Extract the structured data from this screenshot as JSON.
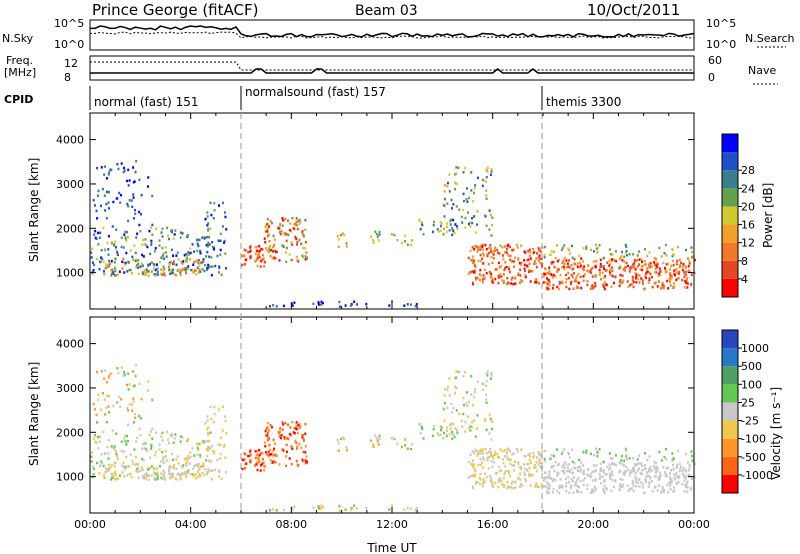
{
  "header": {
    "title": "Prince George (fitACF)",
    "beam": "Beam 03",
    "date": "10/Oct/2011"
  },
  "top_panel": {
    "left_label": "N.Sky",
    "left_ticks": [
      "10^5",
      "10^0"
    ],
    "right_ticks": [
      "10^5",
      "10^0"
    ],
    "right_label": "N.Search"
  },
  "freq_panel": {
    "left_label_1": "Freq.",
    "left_label_2": "[MHz]",
    "left_ticks": [
      "12",
      "8"
    ],
    "right_ticks": [
      "60",
      "0"
    ],
    "right_label": "Nave"
  },
  "cpid": {
    "label": "CPID",
    "modes": [
      {
        "name": "normal (fast) 151",
        "start_hour": 0
      },
      {
        "name": "normalsound (fast) 157",
        "start_hour": 6
      },
      {
        "name": "themis 3300",
        "start_hour": 18
      }
    ]
  },
  "chart_data": [
    {
      "type": "heatmap",
      "name": "power",
      "ylabel": "Slant Range [km]",
      "xlabel": "",
      "ylim": [
        180,
        4600
      ],
      "yticks": [
        "1000",
        "2000",
        "3000",
        "4000"
      ],
      "xlim_hours": [
        0,
        24
      ],
      "colorbar": {
        "label": "Power [dB]",
        "ticks": [
          "4",
          "8",
          "12",
          "16",
          "20",
          "24",
          "28"
        ],
        "colors": [
          "#0000ff",
          "#2050c8",
          "#3c7d8c",
          "#64a050",
          "#d2c832",
          "#f0a028",
          "#f07828",
          "#e64628",
          "#ff0000"
        ]
      }
    },
    {
      "type": "heatmap",
      "name": "velocity",
      "ylabel": "Slant Range [km]",
      "xlabel": "Time UT",
      "ylim": [
        180,
        4600
      ],
      "yticks": [
        "1000",
        "2000",
        "3000",
        "4000"
      ],
      "xticks": [
        "00:00",
        "04:00",
        "08:00",
        "12:00",
        "16:00",
        "20:00",
        "00:00"
      ],
      "xlim_hours": [
        0,
        24
      ],
      "colorbar": {
        "label": "Velocity [m s⁻¹]",
        "ticks": [
          "1000",
          "500",
          "100",
          "25",
          "-25",
          "-100",
          "-500",
          "-1000"
        ],
        "colors": [
          "#2846be",
          "#2878c8",
          "#50a064",
          "#64c850",
          "#c8c8c8",
          "#f0c850",
          "#ff9628",
          "#ff6414",
          "#ff0000"
        ]
      }
    }
  ]
}
